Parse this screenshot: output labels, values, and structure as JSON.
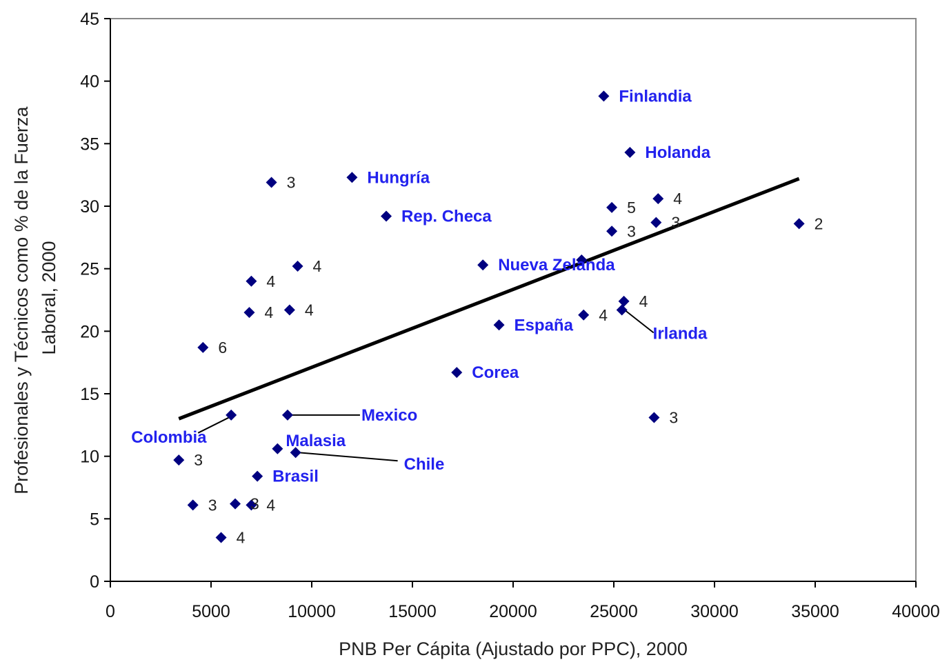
{
  "chart_data": {
    "type": "scatter",
    "xlabel": "PNB Per Cápita (Ajustado por PPC), 2000",
    "ylabel": [
      "Profesionales y Técnicos como % de la Fuerza",
      "Laboral, 2000"
    ],
    "xlim": [
      0,
      40000
    ],
    "ylim": [
      0,
      45
    ],
    "x_ticks": [
      0,
      5000,
      10000,
      15000,
      20000,
      25000,
      30000,
      35000,
      40000
    ],
    "y_ticks": [
      0,
      5,
      10,
      15,
      20,
      25,
      30,
      35,
      40,
      45
    ],
    "grid": false,
    "marker": "diamond",
    "marker_color": "#000080",
    "label_color": "#2222ee",
    "trendline": {
      "x": [
        3400,
        34200
      ],
      "y": [
        13.0,
        32.2
      ],
      "color": "#000000"
    },
    "points": [
      {
        "x": 24500,
        "y": 38.8,
        "label": "Finlandia",
        "kind": "country"
      },
      {
        "x": 25800,
        "y": 34.3,
        "label": "Holanda",
        "kind": "country"
      },
      {
        "x": 12000,
        "y": 32.3,
        "label": "Hungría",
        "kind": "country"
      },
      {
        "x": 13700,
        "y": 29.2,
        "label": "Rep. Checa",
        "kind": "country"
      },
      {
        "x": 18500,
        "y": 25.3,
        "label": "Nueva Zelanda",
        "kind": "country"
      },
      {
        "x": 19300,
        "y": 20.5,
        "label": "España",
        "kind": "country"
      },
      {
        "x": 25400,
        "y": 21.7,
        "label": "Irlanda",
        "kind": "country"
      },
      {
        "x": 17200,
        "y": 16.7,
        "label": "Corea",
        "kind": "country"
      },
      {
        "x": 8800,
        "y": 13.3,
        "label": "Mexico",
        "kind": "country"
      },
      {
        "x": 6000,
        "y": 13.3,
        "label": "Colombia",
        "kind": "country"
      },
      {
        "x": 8300,
        "y": 10.6,
        "label": "Malasia",
        "kind": "country"
      },
      {
        "x": 9200,
        "y": 10.3,
        "label": "Chile",
        "kind": "country"
      },
      {
        "x": 7300,
        "y": 8.4,
        "label": "Brasil",
        "kind": "country"
      },
      {
        "x": 8000,
        "y": 31.9,
        "label": "3",
        "kind": "number"
      },
      {
        "x": 9300,
        "y": 25.2,
        "label": "4",
        "kind": "number"
      },
      {
        "x": 7000,
        "y": 24.0,
        "label": "4",
        "kind": "number"
      },
      {
        "x": 6900,
        "y": 21.5,
        "label": "4",
        "kind": "number"
      },
      {
        "x": 8900,
        "y": 21.7,
        "label": "4",
        "kind": "number"
      },
      {
        "x": 4600,
        "y": 18.7,
        "label": "6",
        "kind": "number"
      },
      {
        "x": 3400,
        "y": 9.7,
        "label": "3",
        "kind": "number"
      },
      {
        "x": 4100,
        "y": 6.1,
        "label": "3",
        "kind": "number"
      },
      {
        "x": 6200,
        "y": 6.2,
        "label": "3",
        "kind": "number"
      },
      {
        "x": 7000,
        "y": 6.1,
        "label": "4",
        "kind": "number"
      },
      {
        "x": 5500,
        "y": 3.5,
        "label": "4",
        "kind": "number"
      },
      {
        "x": 24900,
        "y": 29.9,
        "label": "5",
        "kind": "number"
      },
      {
        "x": 27200,
        "y": 30.6,
        "label": "4",
        "kind": "number"
      },
      {
        "x": 24900,
        "y": 28.0,
        "label": "3",
        "kind": "number"
      },
      {
        "x": 27100,
        "y": 28.7,
        "label": "3",
        "kind": "number"
      },
      {
        "x": 34200,
        "y": 28.6,
        "label": "2",
        "kind": "number"
      },
      {
        "x": 23400,
        "y": 25.7,
        "label": "",
        "kind": "number"
      },
      {
        "x": 25500,
        "y": 22.4,
        "label": "4",
        "kind": "number"
      },
      {
        "x": 23500,
        "y": 21.3,
        "label": "4",
        "kind": "number"
      },
      {
        "x": 27000,
        "y": 13.1,
        "label": "3",
        "kind": "number"
      }
    ]
  }
}
